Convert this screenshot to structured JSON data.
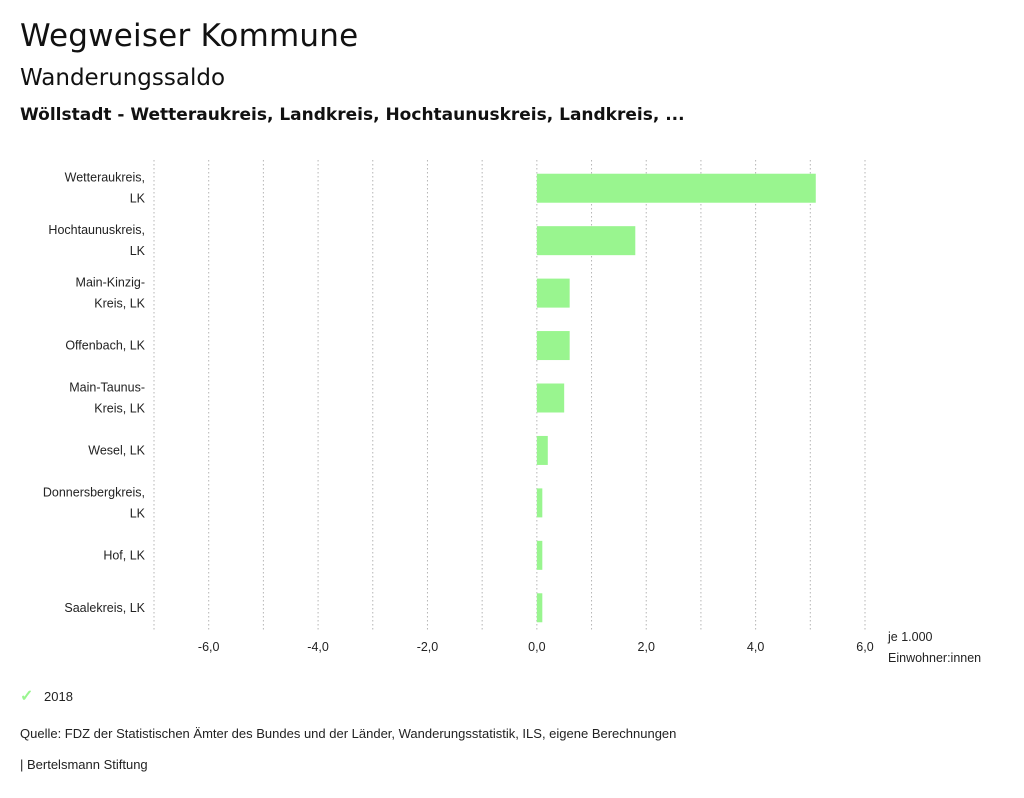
{
  "header": {
    "title": "Wegweiser Kommune",
    "subtitle": "Wanderungssaldo",
    "region": "Wöllstadt - Wetteraukreis, Landkreis, Hochtaunuskreis, Landkreis, ..."
  },
  "legend": {
    "items": [
      {
        "label": "2018",
        "color": "#99f58f",
        "icon": "check-icon"
      }
    ]
  },
  "footer": {
    "source": "Quelle: FDZ der Statistischen Ämter des Bundes und der Länder, Wanderungsstatistik, ILS, eigene Berechnungen",
    "brand": "| Bertelsmann Stiftung"
  },
  "chart_data": {
    "type": "bar",
    "orientation": "horizontal",
    "title": "Wanderungssaldo",
    "xlabel": [
      "je 1.000",
      "Einwohner:innen"
    ],
    "xlim": [
      -7.0,
      6.0
    ],
    "xticks": [
      -6.0,
      -4.0,
      -2.0,
      0.0,
      2.0,
      4.0,
      6.0
    ],
    "xtick_labels": [
      "-6,0",
      "-4,0",
      "-2,0",
      "0,0",
      "2,0",
      "4,0",
      "6,0"
    ],
    "grid": true,
    "categories": [
      [
        "Wetteraukreis,",
        "LK"
      ],
      [
        "Hochtaunuskreis,",
        "LK"
      ],
      [
        "Main-Kinzig-",
        "Kreis, LK"
      ],
      [
        "Offenbach, LK"
      ],
      [
        "Main-Taunus-",
        "Kreis, LK"
      ],
      [
        "Wesel, LK"
      ],
      [
        "Donnersbergkreis,",
        "LK"
      ],
      [
        "Hof, LK"
      ],
      [
        "Saalekreis, LK"
      ]
    ],
    "series": [
      {
        "name": "2018",
        "color": "#99f58f",
        "values": [
          5.1,
          1.8,
          0.6,
          0.6,
          0.5,
          0.2,
          0.1,
          0.1,
          0.1
        ]
      }
    ]
  }
}
